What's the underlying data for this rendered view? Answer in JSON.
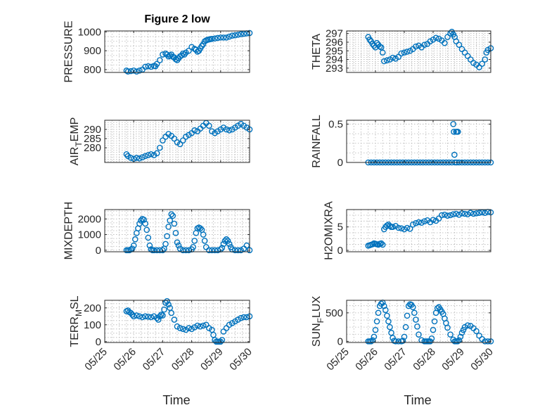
{
  "figure": {
    "title": "Figure 2 low",
    "marker_color": "#0072BD",
    "xlabel": "Time",
    "xticks": [
      "05/25",
      "05/26",
      "05/27",
      "05/28",
      "05/29",
      "05/30"
    ]
  },
  "chart_data": [
    {
      "type": "scatter",
      "title": "Figure 2 low",
      "ylabel": "PRESSURE",
      "ylabel_parts": [
        "PRESSURE"
      ],
      "ylim": [
        785,
        1005
      ],
      "yticks": [
        800,
        900,
        1000
      ],
      "xlim": [
        0,
        5
      ],
      "grid": true,
      "x": [
        0.75,
        0.8,
        0.9,
        1.0,
        1.1,
        1.2,
        1.3,
        1.4,
        1.5,
        1.6,
        1.7,
        1.75,
        1.8,
        1.9,
        2.0,
        2.1,
        2.15,
        2.2,
        2.25,
        2.3,
        2.35,
        2.4,
        2.45,
        2.5,
        2.55,
        2.6,
        2.65,
        2.7,
        2.75,
        2.8,
        2.9,
        3.0,
        3.1,
        3.15,
        3.2,
        3.25,
        3.3,
        3.35,
        3.4,
        3.45,
        3.5,
        3.55,
        3.6,
        3.65,
        3.7,
        3.8,
        3.9,
        4.0,
        4.1,
        4.2,
        4.3,
        4.4,
        4.5,
        4.6,
        4.7,
        4.8,
        4.9,
        5.0
      ],
      "y": [
        795,
        790,
        792,
        795,
        790,
        795,
        800,
        815,
        818,
        815,
        820,
        818,
        830,
        850,
        880,
        885,
        880,
        870,
        875,
        880,
        868,
        865,
        855,
        850,
        860,
        870,
        875,
        885,
        880,
        890,
        900,
        920,
        910,
        905,
        895,
        900,
        912,
        925,
        935,
        950,
        955,
        958,
        960,
        962,
        963,
        965,
        968,
        970,
        970,
        970,
        975,
        980,
        982,
        985,
        988,
        990,
        992,
        994
      ]
    },
    {
      "type": "scatter",
      "title": "",
      "ylabel": "THETA",
      "ylabel_parts": [
        "THETA"
      ],
      "ylim": [
        292.5,
        297.3
      ],
      "yticks": [
        293,
        294,
        295,
        296,
        297
      ],
      "xlim": [
        0,
        5
      ],
      "grid": true,
      "x": [
        0.75,
        0.8,
        0.85,
        0.9,
        0.95,
        1.0,
        1.05,
        1.1,
        1.15,
        1.2,
        1.25,
        1.3,
        1.4,
        1.5,
        1.6,
        1.7,
        1.8,
        1.9,
        2.0,
        2.1,
        2.2,
        2.3,
        2.4,
        2.5,
        2.6,
        2.7,
        2.8,
        2.9,
        3.0,
        3.1,
        3.2,
        3.3,
        3.4,
        3.5,
        3.6,
        3.65,
        3.7,
        3.75,
        3.8,
        3.9,
        4.0,
        4.1,
        4.2,
        4.3,
        4.4,
        4.5,
        4.6,
        4.7,
        4.8,
        4.85,
        4.9,
        5.0
      ],
      "y": [
        296.6,
        296.3,
        296.1,
        295.8,
        295.6,
        295.4,
        295.9,
        295.7,
        295.5,
        295.4,
        294.8,
        293.8,
        293.9,
        294.0,
        294.2,
        294.1,
        294.3,
        294.7,
        294.8,
        294.9,
        295.0,
        295.2,
        295.5,
        295.6,
        295.4,
        295.7,
        295.8,
        296.1,
        296.3,
        296.5,
        296.4,
        296.2,
        295.9,
        296.6,
        297.0,
        297.2,
        296.9,
        296.6,
        296.1,
        295.7,
        295.2,
        294.8,
        294.4,
        294.0,
        293.6,
        293.4,
        293.1,
        293.5,
        294.0,
        294.8,
        295.1,
        295.3
      ]
    },
    {
      "type": "scatter",
      "title": "",
      "ylabel": "AIR_TEMP",
      "ylabel_parts": [
        "AIR",
        "T",
        "EMP"
      ],
      "ylim": [
        272,
        295
      ],
      "yticks": [
        280,
        285,
        290
      ],
      "xlim": [
        0,
        5
      ],
      "grid": true,
      "x": [
        0.75,
        0.8,
        0.9,
        1.0,
        1.1,
        1.2,
        1.3,
        1.4,
        1.5,
        1.6,
        1.7,
        1.8,
        1.9,
        2.0,
        2.1,
        2.2,
        2.3,
        2.4,
        2.5,
        2.6,
        2.7,
        2.8,
        2.9,
        3.0,
        3.1,
        3.2,
        3.3,
        3.4,
        3.5,
        3.6,
        3.7,
        3.8,
        3.9,
        4.0,
        4.1,
        4.2,
        4.3,
        4.4,
        4.5,
        4.6,
        4.7,
        4.8,
        4.9,
        5.0
      ],
      "y": [
        276.5,
        275.5,
        274.5,
        274.0,
        274.5,
        274.2,
        274.8,
        275.5,
        276.0,
        276.5,
        276.0,
        277.0,
        280.0,
        284.0,
        286.0,
        287.5,
        286.5,
        285.0,
        283.0,
        282.0,
        284.0,
        286.0,
        287.0,
        288.0,
        289.5,
        289.0,
        290.5,
        292.0,
        293.5,
        292.0,
        289.0,
        288.0,
        289.0,
        290.0,
        291.0,
        290.0,
        289.5,
        290.0,
        291.0,
        292.0,
        293.0,
        292.0,
        291.0,
        290.0
      ]
    },
    {
      "type": "scatter",
      "title": "",
      "ylabel": "RAINFALL",
      "ylabel_parts": [
        "RAINFALL"
      ],
      "ylim": [
        0,
        0.55
      ],
      "yticks": [
        0,
        0.5
      ],
      "xlim": [
        0,
        5
      ],
      "grid": true,
      "x": [
        0.75,
        0.85,
        0.95,
        1.05,
        1.15,
        1.25,
        1.35,
        1.45,
        1.55,
        1.65,
        1.75,
        1.85,
        1.95,
        2.05,
        2.15,
        2.25,
        2.35,
        2.45,
        2.55,
        2.65,
        2.75,
        2.85,
        2.95,
        3.05,
        3.15,
        3.25,
        3.35,
        3.45,
        3.55,
        3.65,
        3.7,
        3.72,
        3.74,
        3.76,
        3.8,
        3.82,
        3.84,
        3.86,
        3.9,
        4.0,
        4.1,
        4.2,
        4.3,
        4.4,
        4.5,
        4.6,
        4.7,
        4.8,
        4.9,
        5.0
      ],
      "y": [
        0,
        0,
        0,
        0,
        0,
        0,
        0,
        0,
        0,
        0,
        0,
        0,
        0,
        0,
        0,
        0,
        0,
        0,
        0,
        0,
        0,
        0,
        0,
        0,
        0,
        0,
        0,
        0,
        0,
        0,
        0.5,
        0.4,
        0.1,
        0,
        0.4,
        0,
        0.4,
        0.4,
        0,
        0,
        0,
        0,
        0,
        0,
        0,
        0,
        0,
        0,
        0,
        0
      ]
    },
    {
      "type": "scatter",
      "title": "",
      "ylabel": "MIXDEPTH",
      "ylabel_parts": [
        "MIXDEPTH"
      ],
      "ylim": [
        -100,
        2600
      ],
      "yticks": [
        0,
        1000,
        2000
      ],
      "xlim": [
        0,
        5
      ],
      "grid": true,
      "x": [
        0.75,
        0.8,
        0.85,
        0.9,
        0.95,
        1.0,
        1.05,
        1.1,
        1.15,
        1.2,
        1.25,
        1.3,
        1.35,
        1.4,
        1.45,
        1.5,
        1.55,
        1.6,
        1.65,
        1.7,
        1.8,
        1.9,
        2.0,
        2.05,
        2.1,
        2.15,
        2.2,
        2.25,
        2.3,
        2.35,
        2.4,
        2.45,
        2.5,
        2.55,
        2.6,
        2.7,
        2.8,
        2.9,
        3.0,
        3.05,
        3.1,
        3.15,
        3.2,
        3.25,
        3.3,
        3.35,
        3.4,
        3.45,
        3.5,
        3.6,
        3.7,
        3.8,
        3.9,
        4.0,
        4.05,
        4.1,
        4.15,
        4.2,
        4.25,
        4.3,
        4.35,
        4.4,
        4.5,
        4.6,
        4.7,
        4.8,
        4.9,
        5.0
      ],
      "y": [
        0,
        0,
        0,
        50,
        100,
        300,
        700,
        1100,
        1400,
        1700,
        1900,
        2000,
        1950,
        1700,
        1300,
        800,
        300,
        50,
        0,
        0,
        0,
        0,
        0,
        100,
        400,
        900,
        1500,
        1900,
        2300,
        2200,
        1700,
        1100,
        500,
        300,
        100,
        0,
        0,
        0,
        50,
        200,
        600,
        1100,
        1400,
        1450,
        1400,
        1300,
        1000,
        600,
        200,
        0,
        0,
        0,
        0,
        50,
        150,
        400,
        600,
        700,
        600,
        400,
        200,
        50,
        0,
        0,
        0,
        100,
        300,
        0
      ]
    },
    {
      "type": "scatter",
      "title": "",
      "ylabel": "H2OMIXRA",
      "ylabel_parts": [
        "H2OMIXRA"
      ],
      "ylim": [
        -0.3,
        8.7
      ],
      "yticks": [
        0,
        5
      ],
      "xlim": [
        0,
        5
      ],
      "grid": true,
      "x": [
        0.75,
        0.8,
        0.85,
        0.9,
        0.95,
        1.0,
        1.05,
        1.1,
        1.15,
        1.2,
        1.25,
        1.3,
        1.35,
        1.4,
        1.45,
        1.5,
        1.55,
        1.6,
        1.7,
        1.8,
        1.9,
        2.0,
        2.1,
        2.2,
        2.3,
        2.4,
        2.5,
        2.6,
        2.7,
        2.8,
        2.9,
        3.0,
        3.1,
        3.2,
        3.3,
        3.4,
        3.5,
        3.6,
        3.7,
        3.8,
        3.9,
        4.0,
        4.1,
        4.2,
        4.3,
        4.4,
        4.5,
        4.6,
        4.7,
        4.8,
        4.9,
        5.0
      ],
      "y": [
        1.0,
        1.1,
        1.2,
        1.3,
        1.5,
        1.4,
        1.3,
        1.2,
        1.4,
        1.5,
        1.2,
        4.5,
        5.0,
        5.3,
        5.5,
        5.2,
        5.0,
        5.0,
        5.2,
        4.8,
        4.7,
        4.5,
        4.8,
        4.6,
        5.5,
        5.8,
        6.0,
        5.9,
        6.2,
        6.4,
        6.0,
        6.5,
        6.3,
        6.8,
        7.5,
        7.6,
        7.4,
        7.5,
        7.7,
        7.8,
        7.6,
        7.9,
        7.8,
        7.7,
        8.0,
        7.8,
        7.9,
        8.0,
        8.1,
        8.0,
        8.2,
        8.1
      ]
    },
    {
      "type": "scatter",
      "title": "",
      "ylabel": "TERR_MSL",
      "ylabel_parts": [
        "TERR",
        "M",
        "SL"
      ],
      "ylim": [
        -5,
        245
      ],
      "yticks": [
        0,
        100,
        200
      ],
      "xlim": [
        0,
        5
      ],
      "grid": true,
      "x": [
        0.75,
        0.8,
        0.85,
        0.9,
        0.95,
        1.0,
        1.1,
        1.2,
        1.3,
        1.4,
        1.5,
        1.6,
        1.7,
        1.8,
        1.85,
        1.9,
        1.95,
        2.0,
        2.05,
        2.1,
        2.15,
        2.2,
        2.25,
        2.3,
        2.4,
        2.5,
        2.6,
        2.7,
        2.8,
        2.9,
        3.0,
        3.1,
        3.2,
        3.3,
        3.4,
        3.5,
        3.6,
        3.7,
        3.75,
        3.8,
        3.85,
        3.9,
        3.95,
        4.0,
        4.05,
        4.1,
        4.2,
        4.3,
        4.4,
        4.5,
        4.6,
        4.7,
        4.8,
        4.9,
        5.0
      ],
      "y": [
        180,
        185,
        175,
        170,
        160,
        150,
        155,
        150,
        145,
        150,
        148,
        145,
        150,
        140,
        130,
        150,
        160,
        155,
        190,
        230,
        240,
        220,
        200,
        170,
        130,
        90,
        80,
        75,
        70,
        80,
        75,
        85,
        95,
        90,
        95,
        100,
        80,
        70,
        40,
        10,
        0,
        0,
        0,
        0,
        10,
        60,
        80,
        100,
        110,
        120,
        130,
        140,
        145,
        145,
        150
      ]
    },
    {
      "type": "scatter",
      "title": "",
      "ylabel": "SUN_FLUX",
      "ylabel_parts": [
        "SUN",
        "F",
        "LUX"
      ],
      "ylim": [
        -20,
        720
      ],
      "yticks": [
        0,
        500
      ],
      "xlim": [
        0,
        5
      ],
      "grid": true,
      "x": [
        0.75,
        0.8,
        0.85,
        0.9,
        0.95,
        1.0,
        1.05,
        1.1,
        1.15,
        1.2,
        1.25,
        1.3,
        1.35,
        1.4,
        1.45,
        1.5,
        1.55,
        1.6,
        1.65,
        1.7,
        1.8,
        1.9,
        1.95,
        2.0,
        2.05,
        2.1,
        2.15,
        2.2,
        2.25,
        2.3,
        2.35,
        2.4,
        2.45,
        2.5,
        2.6,
        2.7,
        2.75,
        2.8,
        2.85,
        2.9,
        2.95,
        3.0,
        3.05,
        3.1,
        3.15,
        3.2,
        3.25,
        3.3,
        3.35,
        3.4,
        3.45,
        3.5,
        3.6,
        3.7,
        3.75,
        3.8,
        3.85,
        3.9,
        3.95,
        4.0,
        4.05,
        4.1,
        4.2,
        4.3,
        4.4,
        4.5,
        4.6,
        4.7,
        4.8,
        4.9,
        5.0
      ],
      "y": [
        0,
        0,
        0,
        20,
        80,
        200,
        350,
        500,
        620,
        660,
        680,
        620,
        550,
        450,
        350,
        250,
        150,
        60,
        10,
        0,
        0,
        0,
        10,
        80,
        250,
        450,
        620,
        650,
        640,
        600,
        500,
        380,
        260,
        120,
        20,
        0,
        0,
        0,
        0,
        0,
        50,
        200,
        350,
        500,
        580,
        600,
        560,
        520,
        480,
        400,
        320,
        240,
        120,
        30,
        0,
        0,
        0,
        20,
        80,
        150,
        200,
        250,
        280,
        270,
        230,
        180,
        100,
        40,
        0,
        0,
        0
      ]
    }
  ]
}
